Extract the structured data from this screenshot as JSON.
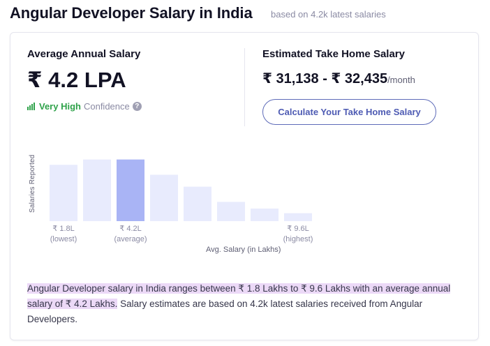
{
  "header": {
    "title": "Angular Developer Salary in India",
    "subtitle": "based on 4.2k latest salaries"
  },
  "average": {
    "label": "Average Annual Salary",
    "value": "₹ 4.2 LPA",
    "confidence_level": "Very High",
    "confidence_word": "Confidence",
    "help_icon": "question-icon",
    "confidence_color": "#2fa24a"
  },
  "take_home": {
    "label": "Estimated Take Home Salary",
    "amount": "₹ 31,138 - ₹ 32,435",
    "unit": "/month",
    "button_label": "Calculate Your Take Home Salary",
    "accent_color": "#4e5bb3"
  },
  "chart_data": {
    "type": "bar",
    "ylabel": "Salaries Reported",
    "xlabel": "Avg. Salary (in Lakhs)",
    "tick_labels": [
      {
        "value": "₹ 1.8L",
        "note": "(lowest)"
      },
      {
        "value": "₹ 4.2L",
        "note": "(average)"
      },
      {
        "value": "₹ 9.6L",
        "note": "(highest)"
      }
    ],
    "values": [
      85,
      93,
      93,
      70,
      52,
      29,
      19,
      12
    ],
    "highlight_index": 2,
    "bar_color": "#e8ebfd",
    "highlight_color": "#a9b4f5"
  },
  "summary": {
    "highlighted": "Angular Developer salary in India ranges between ₹ 1.8 Lakhs to ₹ 9.6 Lakhs with an average annual salary of ₹ 4.2 Lakhs.",
    "rest": " Salary estimates are based on 4.2k latest salaries received from Angular Developers."
  }
}
